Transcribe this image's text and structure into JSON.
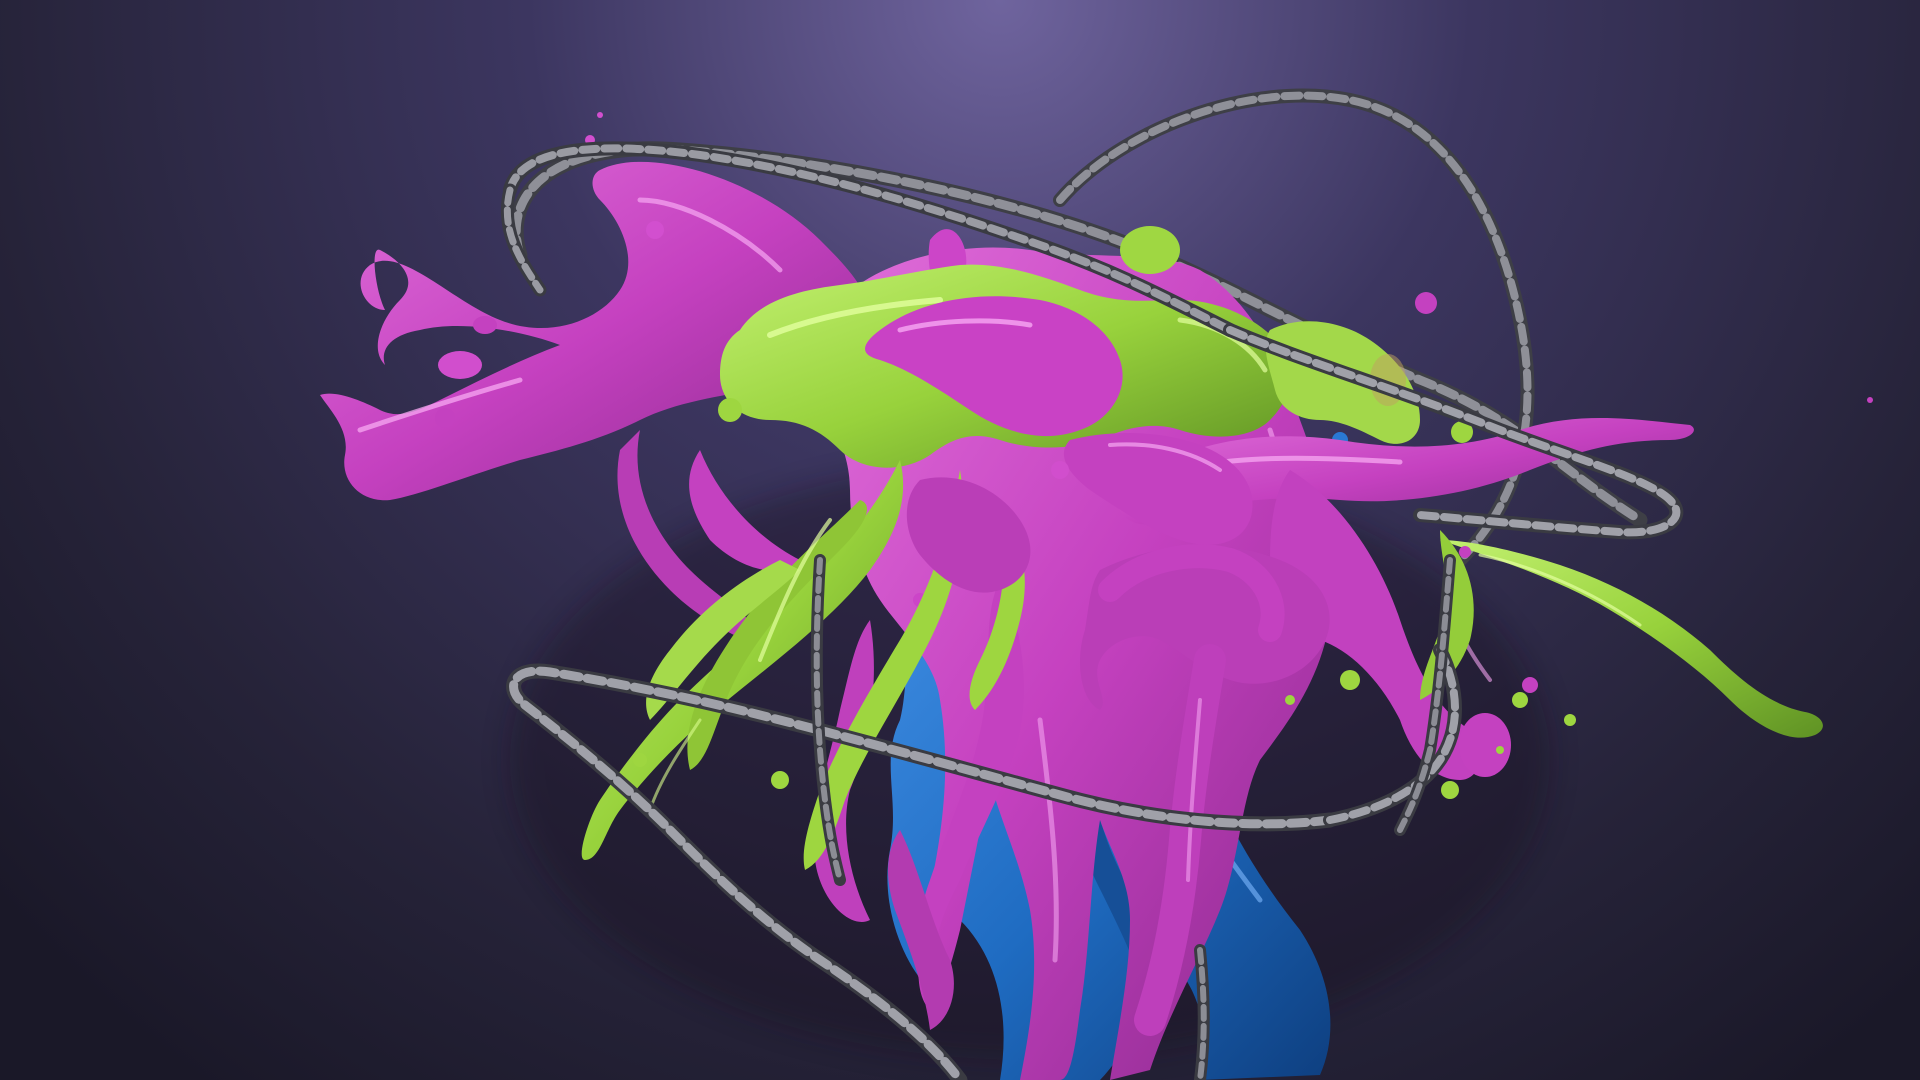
{
  "palette": {
    "background_light": "#6f649e",
    "background_mid": "#3c3660",
    "background_dark": "#1a1828",
    "magenta_paint": "#cc45c8",
    "magenta_highlight": "#f7a8f2",
    "lime_paint": "#9ed640",
    "lime_highlight": "#e2ff9e",
    "blue_paint": "#1f6cc2",
    "blue_highlight": "#7fb9ff",
    "chain_metal": "#6d6e74",
    "chain_highlight": "#b9bac0"
  },
  "elements": {
    "background": "radial-gradient",
    "paint": [
      "magenta",
      "lime",
      "blue"
    ],
    "chains": 3
  }
}
